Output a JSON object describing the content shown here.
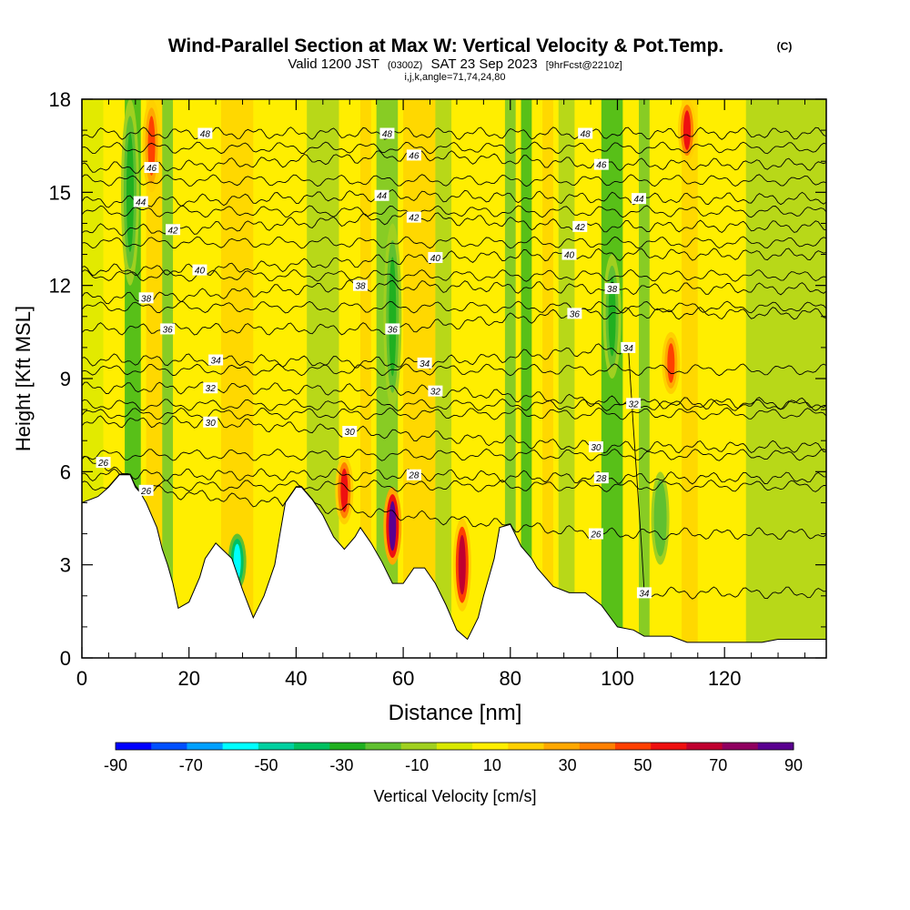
{
  "chart_data": {
    "type": "heatmap",
    "title": "Wind-Parallel Section at Max W: Vertical Velocity & Pot.Temp.",
    "copyright_mark": "(C)",
    "subtitle_main": "Valid 1200 JST",
    "subtitle_utc": "(0300Z)",
    "subtitle_date": "SAT 23 Sep 2023",
    "subtitle_fcst": "[9hrFcst@2210z]",
    "subtitle_line2": "i,j,k,angle=71,74,24,80",
    "xlabel": "Distance [nm]",
    "ylabel": "Height [Kft MSL]",
    "xlim": [
      0,
      139
    ],
    "ylim": [
      0,
      18
    ],
    "x_ticks": [
      {
        "value": 0,
        "label": "0"
      },
      {
        "value": 20,
        "label": "20"
      },
      {
        "value": 40,
        "label": "40"
      },
      {
        "value": 60,
        "label": "60"
      },
      {
        "value": 80,
        "label": "80"
      },
      {
        "value": 100,
        "label": "100"
      },
      {
        "value": 120,
        "label": "120"
      }
    ],
    "y_ticks": [
      {
        "value": 0,
        "label": "0"
      },
      {
        "value": 3,
        "label": "3"
      },
      {
        "value": 6,
        "label": "6"
      },
      {
        "value": 9,
        "label": "9"
      },
      {
        "value": 12,
        "label": "12"
      },
      {
        "value": 15,
        "label": "15"
      },
      {
        "value": 18,
        "label": "18"
      }
    ],
    "shaded_field": "Vertical Velocity",
    "shaded_units": "cm/s",
    "colorbar": {
      "label": "Vertical Velocity [cm/s]",
      "levels": [
        -90,
        -80,
        -70,
        -60,
        -50,
        -40,
        -30,
        -20,
        -10,
        0,
        10,
        20,
        30,
        40,
        50,
        60,
        70,
        80,
        90
      ],
      "colors": [
        "#0000ff",
        "#0050ff",
        "#00a0ff",
        "#00ffff",
        "#00d0a0",
        "#00c060",
        "#20b020",
        "#60c030",
        "#a0d020",
        "#d8e800",
        "#ffee00",
        "#ffd000",
        "#ffa800",
        "#ff8000",
        "#ff4000",
        "#ee1010",
        "#c00030",
        "#900060",
        "#5a0090"
      ],
      "tick_labels": [
        "-90",
        "-70",
        "-50",
        "-30",
        "-10",
        "10",
        "30",
        "50",
        "70",
        "90"
      ]
    },
    "background_band_color": "#ffee00",
    "updraft_cores": [
      {
        "x": 13,
        "y_min": 15,
        "y_max": 18,
        "w": 45
      },
      {
        "x": 49,
        "y_min": 4.3,
        "y_max": 6.5,
        "w": 60
      },
      {
        "x": 58,
        "y_min": 3.0,
        "y_max": 5.5,
        "w": 90
      },
      {
        "x": 71,
        "y_min": 1.5,
        "y_max": 4.5,
        "w": 70
      },
      {
        "x": 110,
        "y_min": 8.5,
        "y_max": 10.5,
        "w": 50
      },
      {
        "x": 113,
        "y_min": 16,
        "y_max": 18,
        "w": 55
      }
    ],
    "downdraft_cores": [
      {
        "x": 29,
        "y_min": 2.2,
        "y_max": 4.0,
        "w": -60
      },
      {
        "x": 9,
        "y_min": 12,
        "y_max": 18,
        "w": -30
      },
      {
        "x": 58,
        "y_min": 8,
        "y_max": 14,
        "w": -30
      },
      {
        "x": 99,
        "y_min": 9,
        "y_max": 13,
        "w": -30
      },
      {
        "x": 108,
        "y_min": 3,
        "y_max": 6,
        "w": -25
      }
    ],
    "isentropes": [
      {
        "theta": 26,
        "label_points": [
          {
            "x": 4,
            "y": 6.3
          },
          {
            "x": 12,
            "y": 5.4
          },
          {
            "x": 96,
            "y": 4.0
          }
        ]
      },
      {
        "theta": 28,
        "label_points": [
          {
            "x": 62,
            "y": 5.9
          },
          {
            "x": 97,
            "y": 5.8
          }
        ]
      },
      {
        "theta": 30,
        "label_points": [
          {
            "x": 24,
            "y": 7.6
          },
          {
            "x": 50,
            "y": 7.3
          },
          {
            "x": 96,
            "y": 6.8
          }
        ]
      },
      {
        "theta": 32,
        "label_points": [
          {
            "x": 24,
            "y": 8.7
          },
          {
            "x": 66,
            "y": 8.6
          },
          {
            "x": 103,
            "y": 8.2
          }
        ]
      },
      {
        "theta": 34,
        "label_points": [
          {
            "x": 25,
            "y": 9.6
          },
          {
            "x": 64,
            "y": 9.5
          },
          {
            "x": 102,
            "y": 10.0
          },
          {
            "x": 105,
            "y": 2.1
          }
        ]
      },
      {
        "theta": 36,
        "label_points": [
          {
            "x": 16,
            "y": 10.6
          },
          {
            "x": 58,
            "y": 10.6
          },
          {
            "x": 92,
            "y": 11.1
          }
        ]
      },
      {
        "theta": 38,
        "label_points": [
          {
            "x": 12,
            "y": 11.6
          },
          {
            "x": 52,
            "y": 12.0
          },
          {
            "x": 99,
            "y": 11.9
          }
        ]
      },
      {
        "theta": 40,
        "label_points": [
          {
            "x": 22,
            "y": 12.5
          },
          {
            "x": 66,
            "y": 12.9
          },
          {
            "x": 91,
            "y": 13.0
          }
        ]
      },
      {
        "theta": 42,
        "label_points": [
          {
            "x": 17,
            "y": 13.8
          },
          {
            "x": 62,
            "y": 14.2
          },
          {
            "x": 93,
            "y": 13.9
          }
        ]
      },
      {
        "theta": 44,
        "label_points": [
          {
            "x": 11,
            "y": 14.7
          },
          {
            "x": 56,
            "y": 14.9
          },
          {
            "x": 104,
            "y": 14.8
          }
        ]
      },
      {
        "theta": 46,
        "label_points": [
          {
            "x": 13,
            "y": 15.8
          },
          {
            "x": 62,
            "y": 16.2
          },
          {
            "x": 97,
            "y": 15.9
          }
        ]
      },
      {
        "theta": 48,
        "label_points": [
          {
            "x": 23,
            "y": 16.9
          },
          {
            "x": 57,
            "y": 16.9
          },
          {
            "x": 94,
            "y": 16.9
          }
        ]
      }
    ],
    "terrain": [
      {
        "x": 0,
        "y": 5.0
      },
      {
        "x": 3,
        "y": 5.2
      },
      {
        "x": 5,
        "y": 5.5
      },
      {
        "x": 7,
        "y": 5.9
      },
      {
        "x": 9,
        "y": 5.9
      },
      {
        "x": 10,
        "y": 5.5
      },
      {
        "x": 11,
        "y": 5.3
      },
      {
        "x": 12,
        "y": 5.0
      },
      {
        "x": 13,
        "y": 4.6
      },
      {
        "x": 14,
        "y": 4.2
      },
      {
        "x": 15,
        "y": 3.5
      },
      {
        "x": 16,
        "y": 3.0
      },
      {
        "x": 17,
        "y": 2.4
      },
      {
        "x": 18,
        "y": 1.6
      },
      {
        "x": 20,
        "y": 1.8
      },
      {
        "x": 22,
        "y": 2.6
      },
      {
        "x": 23,
        "y": 3.2
      },
      {
        "x": 25,
        "y": 3.7
      },
      {
        "x": 28,
        "y": 3.2
      },
      {
        "x": 30,
        "y": 2.2
      },
      {
        "x": 32,
        "y": 1.3
      },
      {
        "x": 34,
        "y": 2.0
      },
      {
        "x": 36,
        "y": 3.0
      },
      {
        "x": 37,
        "y": 4.0
      },
      {
        "x": 38,
        "y": 5.0
      },
      {
        "x": 40,
        "y": 5.5
      },
      {
        "x": 41,
        "y": 5.5
      },
      {
        "x": 43,
        "y": 5.1
      },
      {
        "x": 45,
        "y": 4.6
      },
      {
        "x": 47,
        "y": 3.9
      },
      {
        "x": 49,
        "y": 3.5
      },
      {
        "x": 51,
        "y": 3.9
      },
      {
        "x": 52,
        "y": 4.2
      },
      {
        "x": 54,
        "y": 3.7
      },
      {
        "x": 56,
        "y": 3.1
      },
      {
        "x": 58,
        "y": 2.4
      },
      {
        "x": 60,
        "y": 2.4
      },
      {
        "x": 62,
        "y": 2.9
      },
      {
        "x": 64,
        "y": 2.9
      },
      {
        "x": 66,
        "y": 2.4
      },
      {
        "x": 68,
        "y": 1.7
      },
      {
        "x": 70,
        "y": 0.9
      },
      {
        "x": 72,
        "y": 0.6
      },
      {
        "x": 74,
        "y": 1.3
      },
      {
        "x": 75,
        "y": 2.0
      },
      {
        "x": 77,
        "y": 3.2
      },
      {
        "x": 78,
        "y": 4.2
      },
      {
        "x": 80,
        "y": 4.3
      },
      {
        "x": 82,
        "y": 3.6
      },
      {
        "x": 84,
        "y": 3.2
      },
      {
        "x": 85,
        "y": 2.9
      },
      {
        "x": 88,
        "y": 2.3
      },
      {
        "x": 91,
        "y": 2.1
      },
      {
        "x": 94,
        "y": 2.1
      },
      {
        "x": 97,
        "y": 1.7
      },
      {
        "x": 100,
        "y": 1.0
      },
      {
        "x": 103,
        "y": 0.9
      },
      {
        "x": 105,
        "y": 0.7
      },
      {
        "x": 108,
        "y": 0.7
      },
      {
        "x": 110,
        "y": 0.7
      },
      {
        "x": 113,
        "y": 0.5
      },
      {
        "x": 115,
        "y": 0.5
      },
      {
        "x": 118,
        "y": 0.5
      },
      {
        "x": 120,
        "y": 0.5
      },
      {
        "x": 124,
        "y": 0.5
      },
      {
        "x": 127,
        "y": 0.5
      },
      {
        "x": 130,
        "y": 0.6
      },
      {
        "x": 134,
        "y": 0.6
      },
      {
        "x": 139,
        "y": 0.6
      }
    ],
    "terrain_color": "#ffffff"
  }
}
